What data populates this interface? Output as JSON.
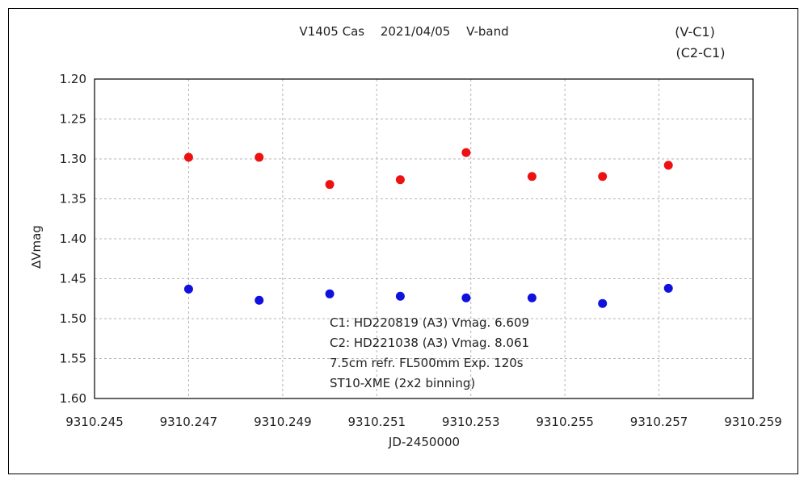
{
  "chart_data": {
    "type": "scatter",
    "title": "V1405 Cas　 2021/04/05　 V-band",
    "xlabel": "JD-2450000",
    "ylabel": "∆Vmag",
    "xlim": [
      9310.245,
      9310.259
    ],
    "ylim": [
      1.2,
      1.6
    ],
    "y_inverted": true,
    "grid": true,
    "legend_position": "top-right",
    "x_ticks": [
      "9310.245",
      "9310.247",
      "9310.249",
      "9310.251",
      "9310.253",
      "9310.255",
      "9310.257",
      "9310.259"
    ],
    "x_tick_values": [
      9310.245,
      9310.247,
      9310.249,
      9310.251,
      9310.253,
      9310.255,
      9310.257,
      9310.259
    ],
    "y_ticks": [
      "1.20",
      "1.25",
      "1.30",
      "1.35",
      "1.40",
      "1.45",
      "1.50",
      "1.55",
      "1.60"
    ],
    "y_tick_values": [
      1.2,
      1.25,
      1.3,
      1.35,
      1.4,
      1.45,
      1.5,
      1.55,
      1.6
    ],
    "series": [
      {
        "name": "(V-C1)",
        "color": "#ee1111",
        "x": [
          9310.247,
          9310.2485,
          9310.25,
          9310.2515,
          9310.2529,
          9310.2543,
          9310.2558,
          9310.2572
        ],
        "y": [
          1.298,
          1.298,
          1.332,
          1.326,
          1.292,
          1.322,
          1.322,
          1.308
        ]
      },
      {
        "name": "(C2-C1)",
        "color": "#1111dd",
        "x": [
          9310.247,
          9310.2485,
          9310.25,
          9310.2515,
          9310.2529,
          9310.2543,
          9310.2558,
          9310.2572
        ],
        "y": [
          1.463,
          1.477,
          1.469,
          1.472,
          1.474,
          1.474,
          1.481,
          1.462
        ]
      }
    ],
    "annotations": [
      "C1: HD220819 (A3) Vmag. 6.609",
      "C2: HD221038 (A3) Vmag. 8.061",
      "7.5cm refr. FL500mm  Exp. 120s",
      "ST10-XME (2x2 binning)"
    ]
  }
}
